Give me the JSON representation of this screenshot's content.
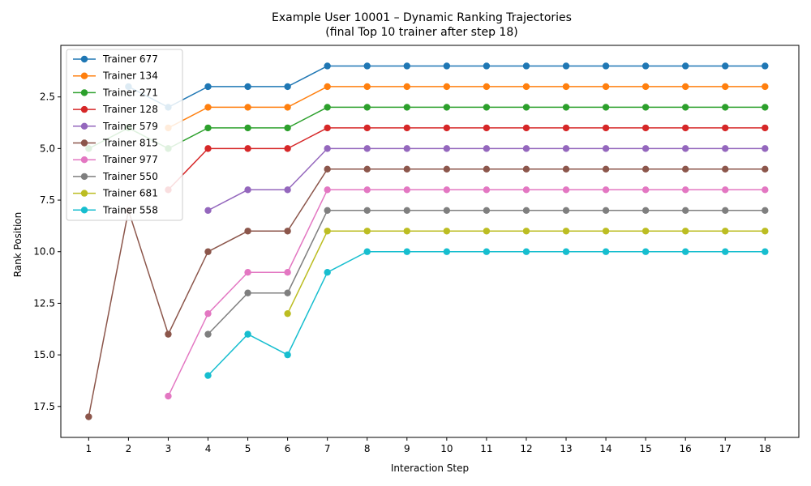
{
  "chart_data": {
    "type": "line",
    "title": "Example User 10001 – Dynamic Ranking Trajectories",
    "subtitle": "(final Top 10 trainer after step 18)",
    "xlabel": "Interaction Step",
    "ylabel": "Rank Position",
    "x": [
      1,
      2,
      3,
      4,
      5,
      6,
      7,
      8,
      9,
      10,
      11,
      12,
      13,
      14,
      15,
      16,
      17,
      18
    ],
    "xticks": [
      "1",
      "2",
      "3",
      "4",
      "5",
      "6",
      "7",
      "8",
      "9",
      "10",
      "11",
      "12",
      "13",
      "14",
      "15",
      "16",
      "17",
      "18"
    ],
    "yticks": [
      2.5,
      5.0,
      7.5,
      10.0,
      12.5,
      15.0,
      17.5
    ],
    "ytick_labels": [
      "2.5",
      "5.0",
      "7.5",
      "10.0",
      "12.5",
      "15.0",
      "17.5"
    ],
    "xlim": [
      0.3,
      18.85
    ],
    "ylim": [
      19.0,
      0.0
    ],
    "y_inverted": true,
    "legend_position": "upper-left",
    "series": [
      {
        "name": "Trainer 677",
        "color": "#1f77b4",
        "values": [
          null,
          2,
          3,
          2,
          2,
          2,
          1,
          1,
          1,
          1,
          1,
          1,
          1,
          1,
          1,
          1,
          1,
          1
        ]
      },
      {
        "name": "Trainer 134",
        "color": "#ff7f0e",
        "values": [
          null,
          null,
          4,
          3,
          3,
          3,
          2,
          2,
          2,
          2,
          2,
          2,
          2,
          2,
          2,
          2,
          2,
          2
        ]
      },
      {
        "name": "Trainer 271",
        "color": "#2ca02c",
        "values": [
          5,
          4,
          5,
          4,
          4,
          4,
          3,
          3,
          3,
          3,
          3,
          3,
          3,
          3,
          3,
          3,
          3,
          3
        ]
      },
      {
        "name": "Trainer 128",
        "color": "#d62728",
        "values": [
          null,
          null,
          7,
          5,
          5,
          5,
          4,
          4,
          4,
          4,
          4,
          4,
          4,
          4,
          4,
          4,
          4,
          4
        ]
      },
      {
        "name": "Trainer 579",
        "color": "#9467bd",
        "values": [
          null,
          null,
          null,
          8,
          7,
          7,
          5,
          5,
          5,
          5,
          5,
          5,
          5,
          5,
          5,
          5,
          5,
          5
        ]
      },
      {
        "name": "Trainer 815",
        "color": "#8c564b",
        "values": [
          18,
          8,
          14,
          10,
          9,
          9,
          6,
          6,
          6,
          6,
          6,
          6,
          6,
          6,
          6,
          6,
          6,
          6
        ]
      },
      {
        "name": "Trainer 977",
        "color": "#e377c2",
        "values": [
          null,
          null,
          17,
          13,
          11,
          11,
          7,
          7,
          7,
          7,
          7,
          7,
          7,
          7,
          7,
          7,
          7,
          7
        ]
      },
      {
        "name": "Trainer 550",
        "color": "#7f7f7f",
        "values": [
          null,
          null,
          null,
          14,
          12,
          12,
          8,
          8,
          8,
          8,
          8,
          8,
          8,
          8,
          8,
          8,
          8,
          8
        ]
      },
      {
        "name": "Trainer 681",
        "color": "#bcbd22",
        "values": [
          null,
          null,
          null,
          null,
          null,
          13,
          9,
          9,
          9,
          9,
          9,
          9,
          9,
          9,
          9,
          9,
          9,
          9
        ]
      },
      {
        "name": "Trainer 558",
        "color": "#17becf",
        "values": [
          null,
          null,
          null,
          16,
          14,
          15,
          11,
          10,
          10,
          10,
          10,
          10,
          10,
          10,
          10,
          10,
          10,
          10
        ]
      }
    ]
  }
}
